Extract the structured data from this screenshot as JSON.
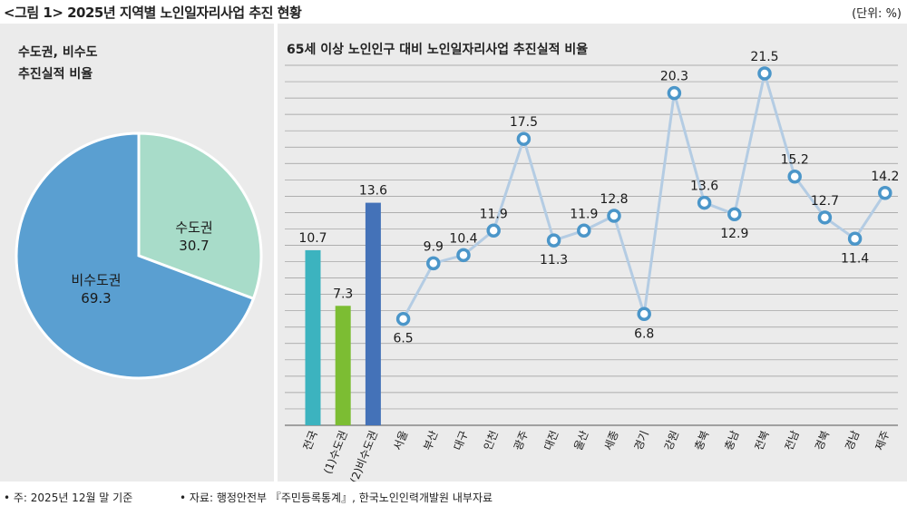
{
  "figure": {
    "title": "<그림 1> 2025년 지역별 노인일자리사업 추진 현황",
    "unit": "(단위: %)",
    "note": "• 주: 2025년 12월 말 기준",
    "source": "• 자료: 행정안전부 『주민등록통계』, 한국노인인력개발원 내부자료"
  },
  "colors": {
    "panel_bg": "#ebebeb",
    "pie_capital": "#a8dcc9",
    "pie_noncapital": "#5a9fd1",
    "bar_total": "#3cb3bf",
    "bar_capital": "#7cbd33",
    "bar_noncapital": "#4472b8",
    "line": "#b4cce3",
    "marker_stroke": "#4b96c9"
  },
  "chart_data": [
    {
      "type": "pie",
      "title": "수도권, 비수도\n추진실적 비율",
      "slices": [
        {
          "label": "수도권",
          "value": 30.7
        },
        {
          "label": "비수도권",
          "value": 69.3
        }
      ]
    },
    {
      "type": "bar+line",
      "title": "65세 이상 노인인구 대비 노인일자리사업 추진실적 비율",
      "ylim": [
        0,
        22
      ],
      "grid": true,
      "bars": {
        "categories": [
          "전국",
          "(1)수도권",
          "(2)비수도권"
        ],
        "values": [
          10.7,
          7.3,
          13.6
        ]
      },
      "line": {
        "categories": [
          "서울",
          "부산",
          "대구",
          "인천",
          "광주",
          "대전",
          "울산",
          "세종",
          "경기",
          "강원",
          "충북",
          "충남",
          "전북",
          "전남",
          "경북",
          "경남",
          "제주"
        ],
        "values": [
          6.5,
          9.9,
          10.4,
          11.9,
          17.5,
          11.3,
          11.9,
          12.8,
          6.8,
          20.3,
          13.6,
          12.9,
          21.5,
          15.2,
          12.7,
          11.4,
          14.2
        ]
      }
    }
  ]
}
